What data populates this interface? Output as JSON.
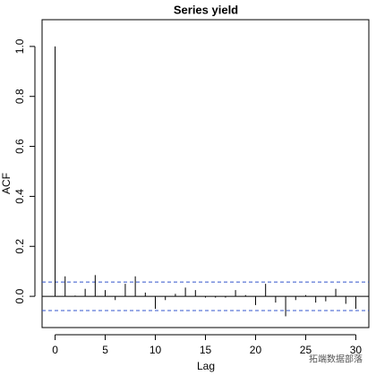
{
  "chart_data": {
    "type": "acf",
    "title": "Series  yield",
    "x_label": "Lag",
    "y_label": "ACF",
    "x": [
      0,
      1,
      2,
      3,
      4,
      5,
      6,
      7,
      8,
      9,
      10,
      11,
      12,
      13,
      14,
      15,
      16,
      17,
      18,
      19,
      20,
      21,
      22,
      23,
      24,
      25,
      26,
      27,
      28,
      29,
      30
    ],
    "values": [
      1.0,
      0.08,
      0.003,
      0.03,
      0.085,
      0.025,
      -0.015,
      0.05,
      0.08,
      0.015,
      -0.05,
      -0.015,
      0.01,
      0.035,
      0.025,
      -0.005,
      -0.005,
      -0.005,
      0.025,
      0.005,
      -0.035,
      0.05,
      -0.025,
      -0.08,
      -0.015,
      0.005,
      -0.025,
      -0.02,
      0.03,
      -0.03,
      -0.05
    ],
    "color": "#000000",
    "confidence_bound": 0.057,
    "confidence_color": "#3355cc",
    "xlim": [
      -1.3,
      31.3
    ],
    "ylim": [
      -0.125,
      1.107
    ],
    "xticks": [
      0,
      5,
      10,
      15,
      20,
      25,
      30
    ],
    "yticks": [
      {
        "value": 0,
        "label": "0.0"
      },
      {
        "value": 0.2,
        "label": "0.2"
      },
      {
        "value": 0.4,
        "label": "0.4"
      },
      {
        "value": 0.6,
        "label": "0.6"
      },
      {
        "value": 0.8,
        "label": "0.8"
      },
      {
        "value": 1,
        "label": "1.0"
      }
    ]
  },
  "watermark": "拓端数据部落"
}
